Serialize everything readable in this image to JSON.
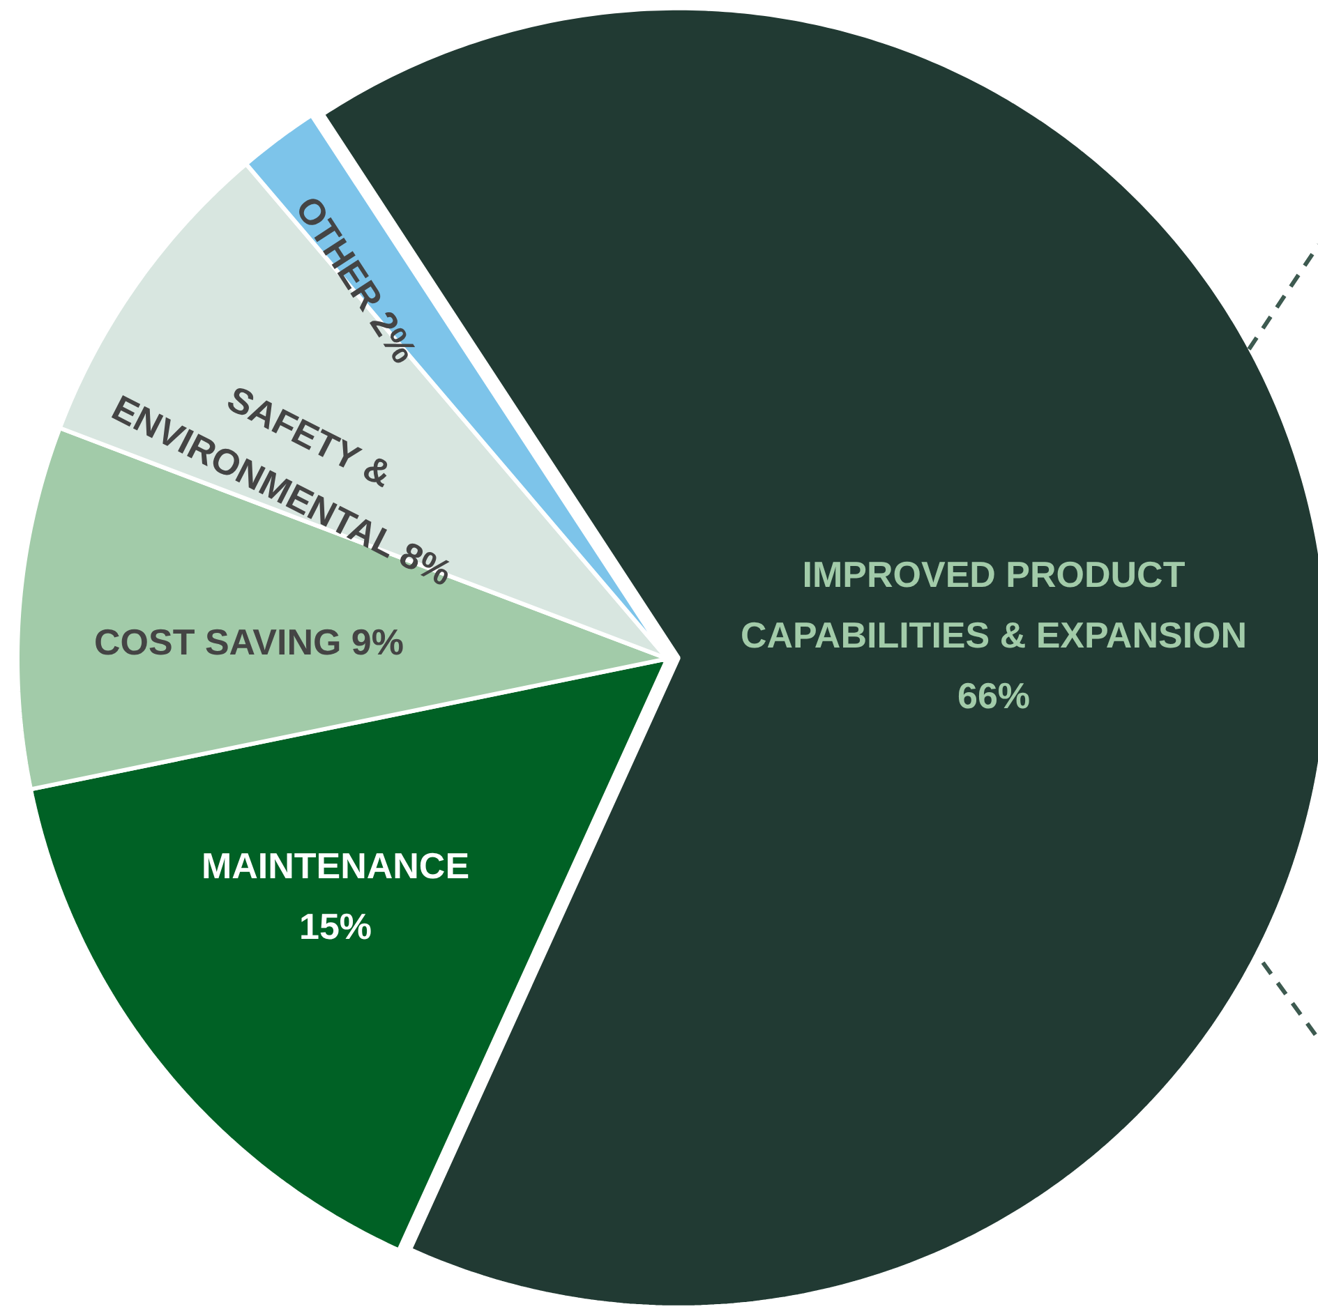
{
  "chart_data": {
    "type": "pie",
    "categories": [
      "IMPROVED PRODUCT CAPABILITIES & EXPANSION",
      "MAINTENANCE",
      "COST SAVING",
      "SAFETY & ENVIRONMENTAL",
      "OTHER"
    ],
    "values": [
      66,
      15,
      9,
      8,
      2
    ],
    "value_labels": [
      "66%",
      "15%",
      "9%",
      "8%",
      "2%"
    ],
    "colors": [
      "#213a33",
      "#006125",
      "#a2cba9",
      "#d8e6e0",
      "#7dc4ea"
    ]
  }
}
